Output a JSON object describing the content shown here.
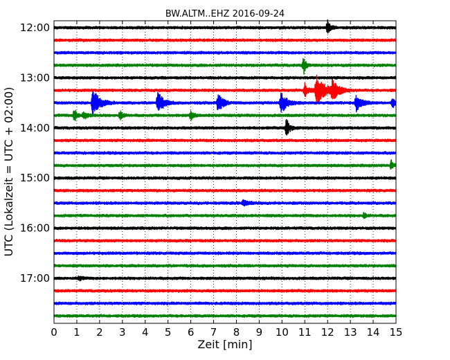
{
  "chart_data": {
    "type": "line",
    "chart_kind": "helicorder",
    "title": "BW.ALTM..EHZ 2016-09-24",
    "xlabel": "Zeit  [min]",
    "ylabel": "UTC (Lokalzeit = UTC + 02:00)",
    "xlim": [
      0,
      15
    ],
    "xticks": [
      "0",
      "1",
      "2",
      "3",
      "4",
      "5",
      "6",
      "7",
      "8",
      "9",
      "10",
      "11",
      "12",
      "13",
      "14",
      "15"
    ],
    "y_tick_labels": [
      "12:00",
      "13:00",
      "14:00",
      "15:00",
      "16:00",
      "17:00"
    ],
    "trace_interval_minutes": 15,
    "grid": "vertical dotted at each minute",
    "trace_colors": [
      "#000000",
      "#ff0000",
      "#0000ff",
      "#008000"
    ],
    "traces": [
      {
        "start": "12:00",
        "events": [
          {
            "t": 12.0,
            "amp": 0.45,
            "dur": 0.2
          }
        ]
      },
      {
        "start": "12:15",
        "events": []
      },
      {
        "start": "12:30",
        "events": []
      },
      {
        "start": "12:45",
        "events": [
          {
            "t": 10.95,
            "amp": 0.6,
            "dur": 0.15
          }
        ]
      },
      {
        "start": "13:00",
        "events": []
      },
      {
        "start": "13:15",
        "events": [
          {
            "t": 11.0,
            "amp": 0.4,
            "dur": 0.3
          },
          {
            "t": 11.5,
            "amp": 1.0,
            "dur": 0.6
          },
          {
            "t": 12.2,
            "amp": 0.55,
            "dur": 0.5
          }
        ]
      },
      {
        "start": "13:30",
        "events": [
          {
            "t": 1.7,
            "amp": 1.0,
            "dur": 0.45
          },
          {
            "t": 4.55,
            "amp": 0.75,
            "dur": 0.4
          },
          {
            "t": 7.2,
            "amp": 0.65,
            "dur": 0.35
          },
          {
            "t": 9.95,
            "amp": 0.7,
            "dur": 0.45
          },
          {
            "t": 13.25,
            "amp": 0.6,
            "dur": 0.35
          },
          {
            "t": 14.85,
            "amp": 0.35,
            "dur": 0.15
          }
        ]
      },
      {
        "start": "13:45",
        "events": [
          {
            "t": 0.9,
            "amp": 0.5,
            "dur": 0.15
          },
          {
            "t": 1.3,
            "amp": 0.3,
            "dur": 0.25
          },
          {
            "t": 2.9,
            "amp": 0.3,
            "dur": 0.2
          },
          {
            "t": 6.0,
            "amp": 0.3,
            "dur": 0.2
          }
        ]
      },
      {
        "start": "14:00",
        "events": [
          {
            "t": 10.2,
            "amp": 0.6,
            "dur": 0.25
          }
        ]
      },
      {
        "start": "14:15",
        "events": []
      },
      {
        "start": "14:30",
        "events": []
      },
      {
        "start": "14:45",
        "events": [
          {
            "t": 14.8,
            "amp": 0.35,
            "dur": 0.12
          }
        ]
      },
      {
        "start": "15:00",
        "events": []
      },
      {
        "start": "15:15",
        "events": []
      },
      {
        "start": "15:30",
        "events": [
          {
            "t": 8.3,
            "amp": 0.15,
            "dur": 0.5
          }
        ]
      },
      {
        "start": "15:45",
        "events": [
          {
            "t": 13.6,
            "amp": 0.2,
            "dur": 0.15
          }
        ]
      },
      {
        "start": "16:00",
        "events": []
      },
      {
        "start": "16:15",
        "events": []
      },
      {
        "start": "16:30",
        "events": []
      },
      {
        "start": "16:45",
        "events": []
      },
      {
        "start": "17:00",
        "events": [
          {
            "t": 1.1,
            "amp": 0.15,
            "dur": 0.2
          }
        ]
      },
      {
        "start": "17:15",
        "events": []
      },
      {
        "start": "17:30",
        "events": []
      },
      {
        "start": "17:45",
        "events": []
      }
    ]
  }
}
